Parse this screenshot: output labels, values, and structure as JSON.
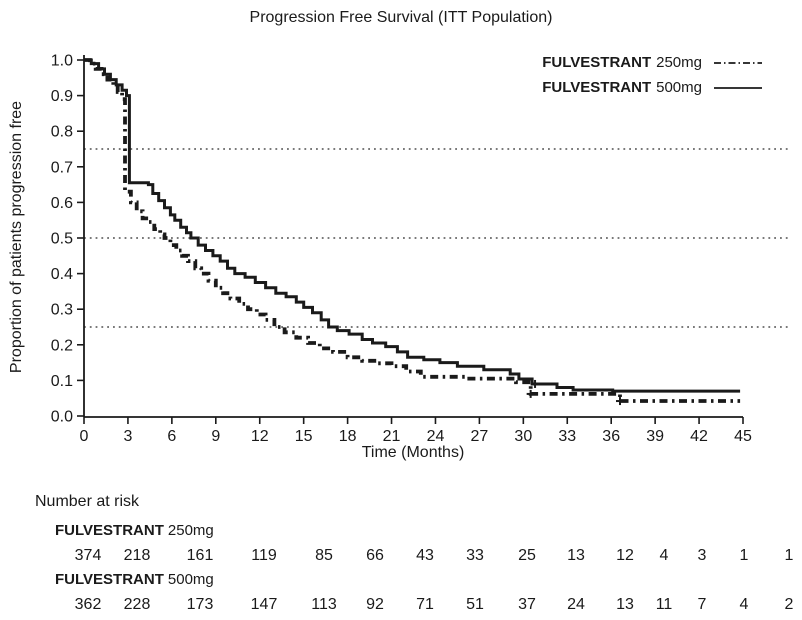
{
  "title": "Progression Free Survival (ITT Population)",
  "y_axis_title": "Proportion of patients progression free",
  "x_axis_title": "Time (Months)",
  "legend": {
    "items": [
      {
        "drug": "FULVESTRANT",
        "dose": "250mg",
        "line": "dashdot"
      },
      {
        "drug": "FULVESTRANT",
        "dose": "500mg",
        "line": "solid"
      }
    ]
  },
  "risk_table": {
    "heading": "Number at risk",
    "rows": [
      {
        "drug": "FULVESTRANT",
        "dose": "250mg",
        "values": [
          "374",
          "218",
          "161",
          "119",
          "85",
          "66",
          "43",
          "33",
          "25",
          "13",
          "12",
          "4",
          "3",
          "1",
          "1"
        ]
      },
      {
        "drug": "FULVESTRANT",
        "dose": "500mg",
        "values": [
          "362",
          "228",
          "173",
          "147",
          "113",
          "92",
          "71",
          "51",
          "37",
          "24",
          "13",
          "11",
          "7",
          "4",
          "2"
        ]
      }
    ]
  },
  "colors": {
    "line": "#1a1a1a",
    "text": "#1a1a1a",
    "background": "#ffffff"
  },
  "chart_data": {
    "type": "line",
    "subtype": "kaplan-meier-step",
    "title": "Progression Free Survival (ITT Population)",
    "xlabel": "Time (Months)",
    "ylabel": "Proportion of patients progression free",
    "xlim": [
      0,
      45
    ],
    "ylim": [
      0.0,
      1.0
    ],
    "x_ticks": [
      0,
      3,
      6,
      9,
      12,
      15,
      18,
      21,
      24,
      27,
      30,
      33,
      36,
      39,
      42,
      45
    ],
    "y_ticks": [
      0.0,
      0.1,
      0.2,
      0.3,
      0.4,
      0.5,
      0.6,
      0.7,
      0.8,
      0.9,
      1.0
    ],
    "gridlines_y": [
      0.25,
      0.5,
      0.75
    ],
    "legend_position": "upper right",
    "series": [
      {
        "name": "FULVESTRANT 250mg",
        "line": "dashdot",
        "steps": [
          [
            0,
            1.0
          ],
          [
            0.4,
            0.99
          ],
          [
            0.8,
            0.975
          ],
          [
            1.2,
            0.96
          ],
          [
            1.6,
            0.945
          ],
          [
            2.0,
            0.925
          ],
          [
            2.3,
            0.91
          ],
          [
            2.6,
            0.89
          ],
          [
            2.8,
            0.63
          ],
          [
            3.2,
            0.6
          ],
          [
            3.6,
            0.575
          ],
          [
            4.0,
            0.555
          ],
          [
            4.4,
            0.545
          ],
          [
            4.8,
            0.525
          ],
          [
            5.2,
            0.51
          ],
          [
            5.5,
            0.5
          ],
          [
            5.9,
            0.48
          ],
          [
            6.3,
            0.465
          ],
          [
            6.7,
            0.45
          ],
          [
            7.1,
            0.435
          ],
          [
            7.6,
            0.415
          ],
          [
            8.0,
            0.4
          ],
          [
            8.5,
            0.38
          ],
          [
            9.0,
            0.36
          ],
          [
            9.5,
            0.345
          ],
          [
            10.0,
            0.33
          ],
          [
            10.6,
            0.315
          ],
          [
            11.2,
            0.3
          ],
          [
            11.8,
            0.285
          ],
          [
            12.4,
            0.27
          ],
          [
            13.0,
            0.25
          ],
          [
            13.7,
            0.235
          ],
          [
            14.5,
            0.22
          ],
          [
            15.3,
            0.205
          ],
          [
            16.1,
            0.19
          ],
          [
            17.0,
            0.18
          ],
          [
            18.0,
            0.165
          ],
          [
            19.0,
            0.155
          ],
          [
            20.0,
            0.148
          ],
          [
            21.0,
            0.14
          ],
          [
            22.0,
            0.125
          ],
          [
            23.0,
            0.11
          ],
          [
            26.0,
            0.105
          ],
          [
            29.5,
            0.095
          ],
          [
            30.5,
            0.062
          ],
          [
            36.6,
            0.042
          ],
          [
            44.8,
            0.042
          ]
        ],
        "censor_marks": [
          [
            30.5,
            0.062
          ],
          [
            36.6,
            0.042
          ]
        ]
      },
      {
        "name": "FULVESTRANT 500mg",
        "line": "solid",
        "steps": [
          [
            0,
            1.0
          ],
          [
            0.5,
            0.99
          ],
          [
            1.0,
            0.975
          ],
          [
            1.4,
            0.96
          ],
          [
            1.8,
            0.945
          ],
          [
            2.2,
            0.93
          ],
          [
            2.6,
            0.915
          ],
          [
            2.9,
            0.9
          ],
          [
            3.1,
            0.655
          ],
          [
            4.4,
            0.65
          ],
          [
            4.7,
            0.625
          ],
          [
            5.1,
            0.605
          ],
          [
            5.5,
            0.585
          ],
          [
            5.9,
            0.565
          ],
          [
            6.2,
            0.55
          ],
          [
            6.6,
            0.53
          ],
          [
            7.0,
            0.515
          ],
          [
            7.3,
            0.5
          ],
          [
            7.8,
            0.48
          ],
          [
            8.3,
            0.465
          ],
          [
            8.8,
            0.45
          ],
          [
            9.3,
            0.435
          ],
          [
            9.8,
            0.415
          ],
          [
            10.3,
            0.4
          ],
          [
            11.0,
            0.39
          ],
          [
            11.7,
            0.375
          ],
          [
            12.4,
            0.36
          ],
          [
            13.1,
            0.345
          ],
          [
            13.8,
            0.335
          ],
          [
            14.5,
            0.32
          ],
          [
            15.0,
            0.305
          ],
          [
            15.6,
            0.29
          ],
          [
            16.2,
            0.27
          ],
          [
            16.7,
            0.25
          ],
          [
            17.3,
            0.24
          ],
          [
            18.1,
            0.23
          ],
          [
            19.0,
            0.215
          ],
          [
            19.7,
            0.205
          ],
          [
            20.6,
            0.195
          ],
          [
            21.4,
            0.18
          ],
          [
            22.1,
            0.165
          ],
          [
            23.2,
            0.158
          ],
          [
            24.3,
            0.15
          ],
          [
            25.5,
            0.14
          ],
          [
            27.3,
            0.13
          ],
          [
            29.1,
            0.118
          ],
          [
            29.7,
            0.104
          ],
          [
            30.6,
            0.09
          ],
          [
            32.3,
            0.08
          ],
          [
            33.4,
            0.073
          ],
          [
            36.1,
            0.07
          ],
          [
            44.8,
            0.07
          ]
        ],
        "censor_marks": [
          [
            30.8,
            0.09
          ]
        ]
      }
    ]
  }
}
